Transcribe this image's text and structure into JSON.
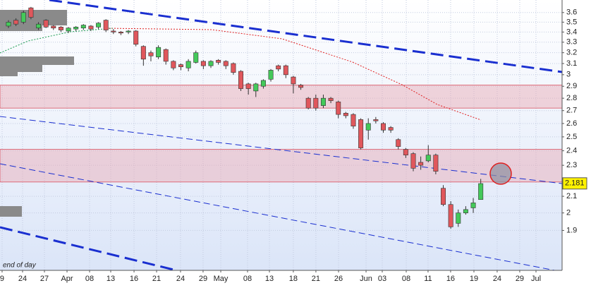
{
  "chart_data": {
    "type": "candlestick",
    "open": [
      3.46,
      3.52,
      3.5,
      3.65,
      3.44,
      3.52,
      3.46,
      3.45,
      3.41,
      3.43,
      3.44,
      3.46,
      3.45,
      3.52,
      3.41,
      3.4,
      3.4,
      3.41,
      3.26,
      3.2,
      3.16,
      3.23,
      3.12,
      3.09,
      3.06,
      3.11,
      3.12,
      3.08,
      3.13,
      3.12,
      3.1,
      3.03,
      2.92,
      2.86,
      2.9,
      2.96,
      3.08,
      3.08,
      2.98,
      2.91,
      2.8,
      2.8,
      2.74,
      2.8,
      2.77,
      2.68,
      2.67,
      2.63,
      2.55,
      2.63,
      2.6,
      2.57,
      2.48,
      2.41,
      2.38,
      2.32,
      2.33,
      2.37,
      2.15,
      2.05,
      1.94,
      2.0,
      2.03,
      2.08
    ],
    "high": [
      3.52,
      3.54,
      3.62,
      3.66,
      3.5,
      3.53,
      3.47,
      3.46,
      3.45,
      3.46,
      3.48,
      3.47,
      3.5,
      3.53,
      3.43,
      3.41,
      3.42,
      3.42,
      3.27,
      3.22,
      3.27,
      3.24,
      3.13,
      3.1,
      3.14,
      3.22,
      3.13,
      3.13,
      3.14,
      3.13,
      3.11,
      3.04,
      2.93,
      2.93,
      2.96,
      3.05,
      3.09,
      3.09,
      2.99,
      2.92,
      2.81,
      2.83,
      2.83,
      2.81,
      2.78,
      2.69,
      2.68,
      2.64,
      2.64,
      2.65,
      2.61,
      2.58,
      2.49,
      2.42,
      2.39,
      2.36,
      2.44,
      2.38,
      2.17,
      2.07,
      2.02,
      2.04,
      2.09,
      2.21
    ],
    "low": [
      3.44,
      3.46,
      3.48,
      3.53,
      3.42,
      3.44,
      3.42,
      3.4,
      3.39,
      3.41,
      3.42,
      3.41,
      3.43,
      3.4,
      3.38,
      3.37,
      3.38,
      3.26,
      3.08,
      3.12,
      3.14,
      3.09,
      3.04,
      3.04,
      3.03,
      3.1,
      3.05,
      3.06,
      3.09,
      3.05,
      3.0,
      2.86,
      2.83,
      2.81,
      2.88,
      2.94,
      3.03,
      2.97,
      2.84,
      2.87,
      2.71,
      2.7,
      2.72,
      2.76,
      2.64,
      2.64,
      2.56,
      2.41,
      2.48,
      2.6,
      2.53,
      2.53,
      2.41,
      2.35,
      2.26,
      2.27,
      2.32,
      2.24,
      2.04,
      1.91,
      1.92,
      1.99,
      2.0,
      2.08
    ],
    "close": [
      3.5,
      3.48,
      3.6,
      3.55,
      3.48,
      3.45,
      3.44,
      3.42,
      3.44,
      3.45,
      3.47,
      3.43,
      3.49,
      3.42,
      3.4,
      3.39,
      3.41,
      3.28,
      3.14,
      3.17,
      3.25,
      3.12,
      3.06,
      3.07,
      3.12,
      3.2,
      3.08,
      3.12,
      3.11,
      3.08,
      3.02,
      2.88,
      2.88,
      2.92,
      2.95,
      3.04,
      3.05,
      3.0,
      2.92,
      2.89,
      2.72,
      2.72,
      2.8,
      2.78,
      2.67,
      2.66,
      2.58,
      2.42,
      2.6,
      2.62,
      2.55,
      2.55,
      2.43,
      2.37,
      2.28,
      2.3,
      2.37,
      2.26,
      2.05,
      1.92,
      2.0,
      2.02,
      2.06,
      2.18
    ],
    "up_color": "#44c95a",
    "down_color": "#e0575c",
    "xlim": [
      -1.13,
      73.85
    ],
    "xticks": [
      {
        "value": -0.85,
        "label": "9"
      },
      {
        "value": 1.88,
        "label": "24"
      },
      {
        "value": 4.8,
        "label": "27"
      },
      {
        "value": 7.81,
        "label": "Apr"
      },
      {
        "value": 10.82,
        "label": "08"
      },
      {
        "value": 13.64,
        "label": "13"
      },
      {
        "value": 16.75,
        "label": "16"
      },
      {
        "value": 19.76,
        "label": "21"
      },
      {
        "value": 22.95,
        "label": "24"
      },
      {
        "value": 25.96,
        "label": "29"
      },
      {
        "value": 28.32,
        "label": "May"
      },
      {
        "value": 31.89,
        "label": "08"
      },
      {
        "value": 34.81,
        "label": "13"
      },
      {
        "value": 38.0,
        "label": "18"
      },
      {
        "value": 41.01,
        "label": "21"
      },
      {
        "value": 44.03,
        "label": "26"
      },
      {
        "value": 47.7,
        "label": "Jun"
      },
      {
        "value": 49.86,
        "label": "03"
      },
      {
        "value": 53.06,
        "label": "08"
      },
      {
        "value": 55.97,
        "label": "11"
      },
      {
        "value": 58.98,
        "label": "16"
      },
      {
        "value": 62.09,
        "label": "19"
      },
      {
        "value": 65.19,
        "label": "24"
      },
      {
        "value": 68.2,
        "label": "29"
      },
      {
        "value": 70.37,
        "label": "Jul"
      }
    ],
    "ylim": [
      1.69,
      3.735
    ],
    "log_y": true,
    "yticks": [
      1.9,
      2,
      2.1,
      2.3,
      2.4,
      2.5,
      2.6,
      2.7,
      2.8,
      2.9,
      3,
      3.1,
      3.2,
      3.3,
      3.4,
      3.5,
      3.6
    ],
    "grid": true,
    "zones": [
      [
        2.72,
        2.91
      ],
      [
        2.19,
        2.41
      ]
    ],
    "last_price": 2.181,
    "footnote": "end of day"
  }
}
